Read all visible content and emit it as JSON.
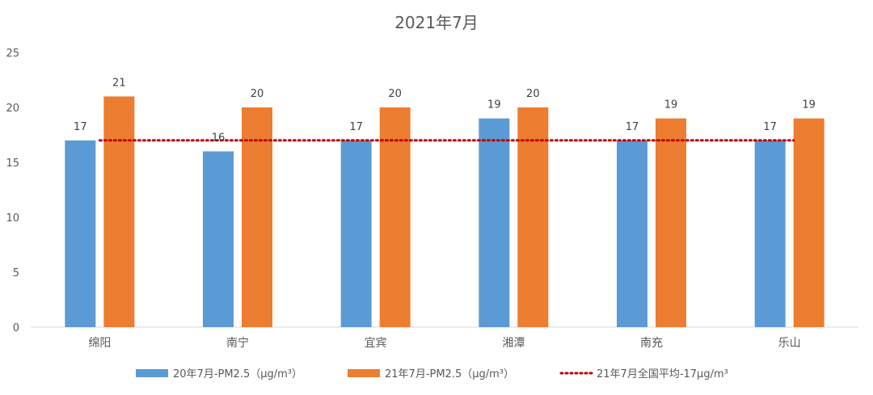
{
  "chart_data": {
    "type": "bar",
    "title": "2021年7月",
    "categories": [
      "绵阳",
      "南宁",
      "宜宾",
      "湘潭",
      "南充",
      "乐山"
    ],
    "series": [
      {
        "name": "20年7月-PM2.5（μg/m³）",
        "values": [
          17,
          16,
          17,
          19,
          17,
          17
        ],
        "color": "#5B9BD5"
      },
      {
        "name": "21年7月-PM2.5（μg/m³）",
        "values": [
          21,
          20,
          20,
          20,
          19,
          19
        ],
        "color": "#ED7D31"
      }
    ],
    "reference_line": {
      "name": "21年7月全国平均-17μg/m³",
      "value": 17,
      "color": "#C00000",
      "style": "dotted"
    },
    "ylim": [
      0,
      25
    ],
    "yticks": [
      0,
      5,
      10,
      15,
      20,
      25
    ],
    "grid": false,
    "legend_position": "bottom"
  }
}
